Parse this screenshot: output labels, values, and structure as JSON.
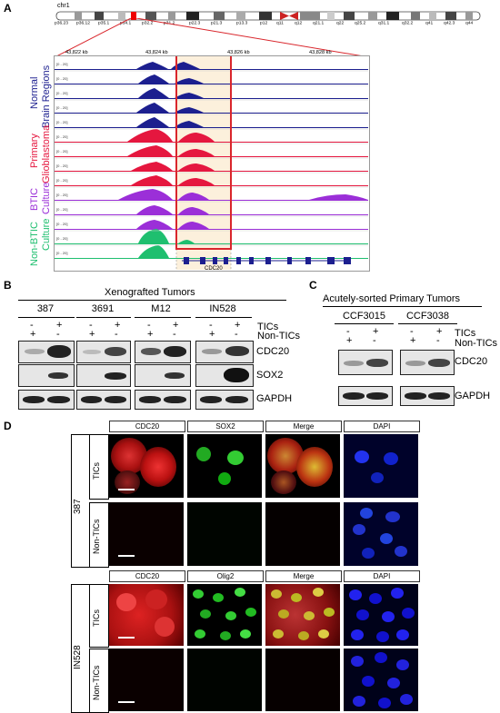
{
  "panels": {
    "a": "A",
    "b": "B",
    "c": "C",
    "d": "D"
  },
  "panel_a": {
    "chrom": "chr1",
    "bands": [
      "p36.23",
      "p36.12",
      "p35.1",
      "p34.1",
      "p32.2",
      "p31.2",
      "p22.3",
      "p21.3",
      "p13.3",
      "p12",
      "q11",
      "q12",
      "q21.1",
      "q22",
      "q25.2",
      "q31.1",
      "q32.2",
      "q41",
      "q42.3",
      "q44"
    ],
    "ticks": [
      "43,822 kb",
      "43,824 kb",
      "43,826 kb",
      "43,828 kb"
    ],
    "track_label": "[0 - 20]",
    "groups": {
      "normal_1": "Normal",
      "normal_2": "Brain Regions",
      "primary_1": "Primary",
      "primary_2": "Glioblastoma",
      "btic_1": "BTIC",
      "btic_2": "Culture",
      "nonbtic_1": "Non-BTIC",
      "nonbtic_2": "Culture"
    },
    "gene": "CDC20",
    "colors": {
      "normal": "#1c1f8f",
      "primary": "#e5173f",
      "btic": "#9b2fd8",
      "nonbtic": "#1fbf6f",
      "highlight": "#d9262c"
    }
  },
  "panel_b": {
    "title": "Xenografted Tumors",
    "lines": [
      "387",
      "3691",
      "M12",
      "IN528"
    ],
    "row1": [
      "-",
      "+"
    ],
    "row2": [
      "+",
      "-"
    ],
    "legend_tics": "TICs",
    "legend_non": "Non-TICs",
    "markers": [
      "CDC20",
      "SOX2",
      "GAPDH"
    ]
  },
  "panel_c": {
    "title": "Acutely-sorted Primary Tumors",
    "lines": [
      "CCF3015",
      "CCF3038"
    ],
    "row1": [
      "-",
      "+"
    ],
    "row2": [
      "+",
      "-"
    ],
    "legend_tics": "TICs",
    "legend_non": "Non-TICs",
    "markers": [
      "CDC20",
      "GAPDH"
    ]
  },
  "panel_d": {
    "top_headers": [
      "CDC20",
      "SOX2",
      "Merge",
      "DAPI"
    ],
    "bottom_headers": [
      "CDC20",
      "Olig2",
      "Merge",
      "DAPI"
    ],
    "line_top": "387",
    "line_bottom": "IN528",
    "row_tics": "TICs",
    "row_non": "Non-TICs"
  }
}
